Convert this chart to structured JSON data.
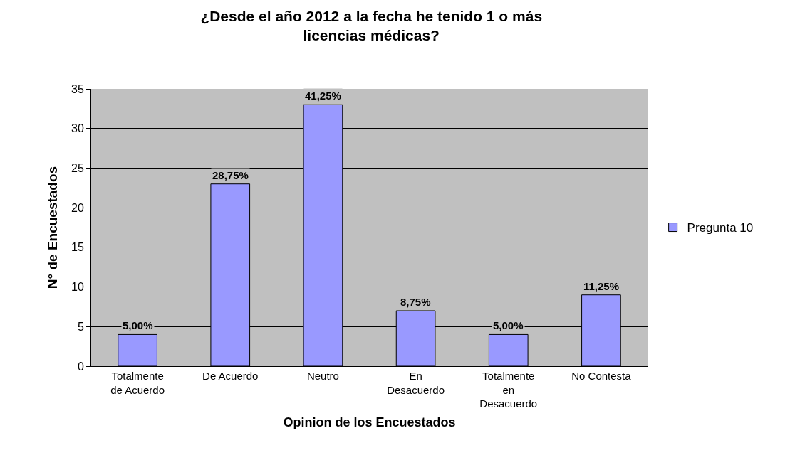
{
  "chart_data": {
    "type": "bar",
    "title": "¿Desde el año 2012 a la fecha he tenido 1 o más licencias médicas?",
    "xlabel": "Opinion de los Encuestados",
    "ylabel": "N° de Encuestados",
    "categories": [
      "Totalmente de Acuerdo",
      "De Acuerdo",
      "Neutro",
      "En Desacuerdo",
      "Totalmente en Desacuerdo",
      "No Contesta"
    ],
    "series": [
      {
        "name": "Pregunta 10",
        "color": "#9999ff",
        "values": [
          4,
          23,
          33,
          7,
          4,
          9
        ]
      }
    ],
    "annotations": [
      {
        "text": "5,00%",
        "x": "Totalmente de Acuerdo",
        "y": 4
      },
      {
        "text": "28,75%",
        "x": "De Acuerdo",
        "y": 23
      },
      {
        "text": "41,25%",
        "x": "Neutro",
        "y": 33
      },
      {
        "text": "8,75%",
        "x": "En Desacuerdo",
        "y": 7
      },
      {
        "text": "5,00%",
        "x": "Totalmente en Desacuerdo",
        "y": 4
      },
      {
        "text": "11,25%",
        "x": "No Contesta",
        "y": 9
      }
    ],
    "ylim": [
      0,
      35
    ],
    "yticks": [
      0,
      5,
      10,
      15,
      20,
      25,
      30,
      35
    ],
    "grid": "y",
    "legend": "right"
  }
}
